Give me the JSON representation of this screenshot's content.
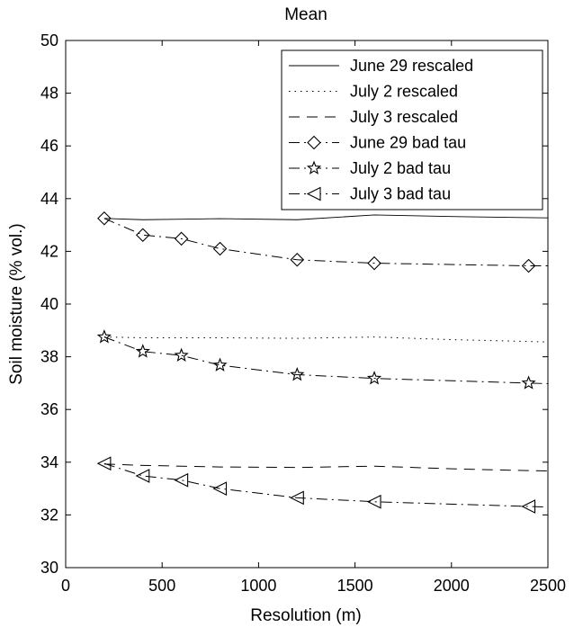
{
  "chart_data": {
    "type": "line",
    "title": "Mean",
    "xlabel": "Resolution (m)",
    "ylabel": "Soil moisture (% vol.)",
    "xlim": [
      0,
      2500
    ],
    "ylim": [
      30,
      50
    ],
    "xticks": [
      0,
      500,
      1000,
      1500,
      2000,
      2500
    ],
    "yticks": [
      30,
      32,
      34,
      36,
      38,
      40,
      42,
      44,
      46,
      48,
      50
    ],
    "grid": false,
    "legend_position": "top-right",
    "x": [
      200,
      400,
      600,
      800,
      1200,
      1600,
      2400
    ],
    "series": [
      {
        "name": "June 29 rescaled",
        "style": "solid",
        "marker": "none",
        "x": [
          200,
          400,
          600,
          800,
          1200,
          1600,
          2000,
          2400,
          2500
        ],
        "values": [
          43.25,
          43.2,
          43.22,
          43.24,
          43.2,
          43.38,
          43.32,
          43.28,
          43.27
        ]
      },
      {
        "name": "July 2 rescaled",
        "style": "dotted",
        "marker": "none",
        "x": [
          200,
          400,
          600,
          800,
          1200,
          1600,
          2000,
          2400,
          2500
        ],
        "values": [
          38.75,
          38.72,
          38.72,
          38.72,
          38.7,
          38.75,
          38.65,
          38.58,
          38.56
        ]
      },
      {
        "name": "July 3 rescaled",
        "style": "dashed",
        "marker": "none",
        "x": [
          200,
          400,
          600,
          800,
          1200,
          1600,
          2000,
          2400,
          2500
        ],
        "values": [
          33.93,
          33.88,
          33.85,
          33.82,
          33.8,
          33.85,
          33.75,
          33.68,
          33.67
        ]
      },
      {
        "name": "June 29 bad tau",
        "style": "dashdot",
        "marker": "diamond",
        "x": [
          200,
          400,
          600,
          800,
          1200,
          1600,
          2400,
          2500
        ],
        "values": [
          43.25,
          42.62,
          42.48,
          42.1,
          41.68,
          41.55,
          41.45,
          41.45
        ]
      },
      {
        "name": "July 2 bad tau",
        "style": "dashdot",
        "marker": "star",
        "x": [
          200,
          400,
          600,
          800,
          1200,
          1600,
          2400,
          2500
        ],
        "values": [
          38.75,
          38.2,
          38.05,
          37.68,
          37.32,
          37.18,
          37.0,
          36.98
        ]
      },
      {
        "name": "July 3 bad tau",
        "style": "dashdot",
        "marker": "triangle-left",
        "x": [
          200,
          400,
          600,
          800,
          1200,
          1600,
          2400,
          2500
        ],
        "values": [
          33.95,
          33.48,
          33.32,
          33.0,
          32.65,
          32.5,
          32.32,
          32.3
        ]
      }
    ]
  }
}
